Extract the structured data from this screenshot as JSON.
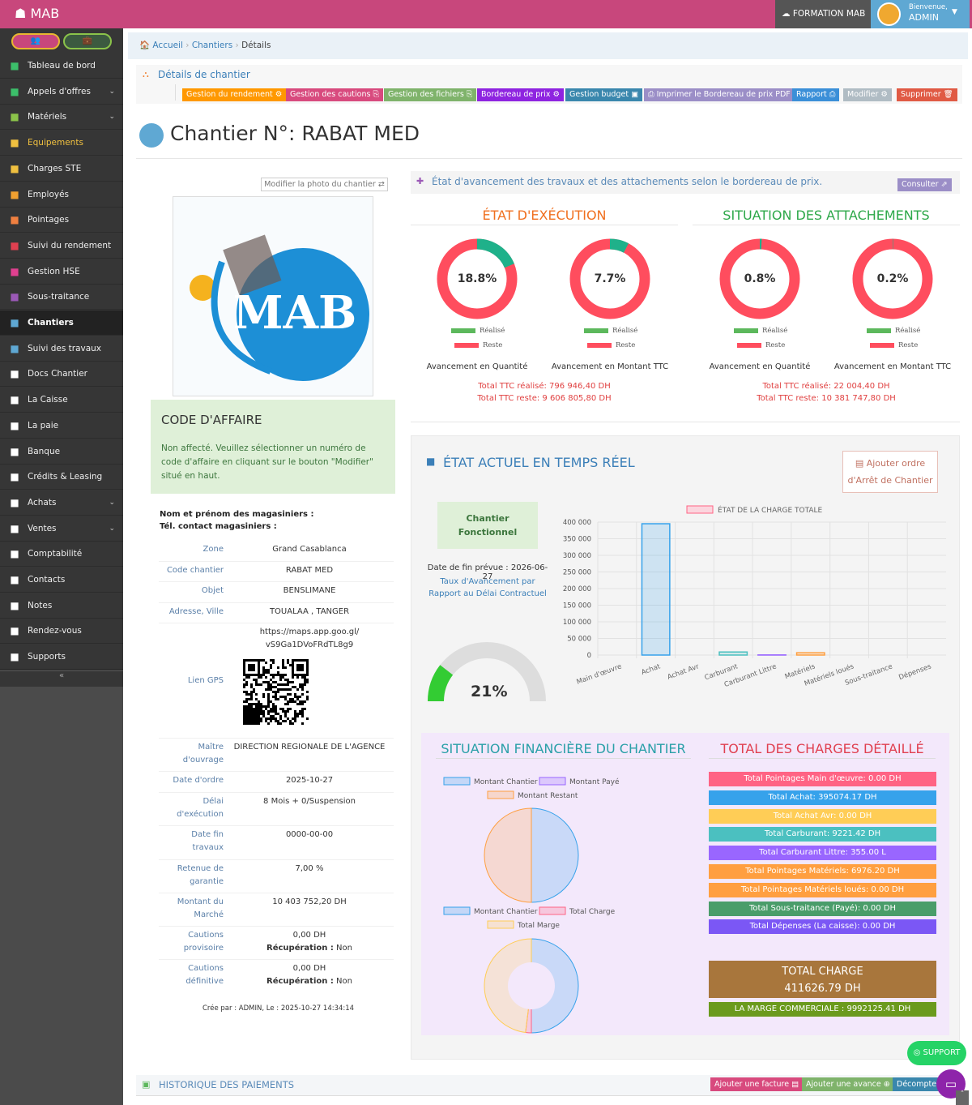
{
  "header": {
    "app": "MAB",
    "formation": "FORMATION MAB",
    "welcome": "Bienvenue,",
    "user": "ADMIN"
  },
  "sidebar": {
    "items": [
      {
        "label": "Tableau de bord",
        "icon": "dashboard-icon",
        "color": "#3cbf6a"
      },
      {
        "label": "Appels d'offres",
        "icon": "globe-icon",
        "color": "#3cbf6a",
        "chevron": true
      },
      {
        "label": "Matériels",
        "icon": "truck-icon",
        "color": "#8bc34a",
        "chevron": true
      },
      {
        "label": "Equipements",
        "icon": "list-icon",
        "color": "#f0c040",
        "yellow": true
      },
      {
        "label": "Charges STE",
        "icon": "file-icon",
        "color": "#f0c040"
      },
      {
        "label": "Employés",
        "icon": "users-icon",
        "color": "#f0a030"
      },
      {
        "label": "Pointages",
        "icon": "calendar-icon",
        "color": "#f08040"
      },
      {
        "label": "Suivi du rendement",
        "icon": "calendar-check-icon",
        "color": "#e04050"
      },
      {
        "label": "Gestion HSE",
        "icon": "warning-icon",
        "color": "#e04090"
      },
      {
        "label": "Sous-traitance",
        "icon": "handshake-icon",
        "color": "#9b59b6"
      },
      {
        "label": "Chantiers",
        "icon": "building-icon",
        "color": "#5fa8d3",
        "active": true
      },
      {
        "label": "Suivi des travaux",
        "icon": "puzzle-icon",
        "color": "#5fa8d3"
      },
      {
        "label": "Docs Chantier",
        "icon": "folder-icon",
        "color": "#fff"
      },
      {
        "label": "La Caisse",
        "icon": "briefcase-icon",
        "color": "#fff"
      },
      {
        "label": "La paie",
        "icon": "money-icon",
        "color": "#fff"
      },
      {
        "label": "Banque",
        "icon": "book-icon",
        "color": "#fff"
      },
      {
        "label": "Crédits & Leasing",
        "icon": "bank-icon",
        "color": "#fff"
      },
      {
        "label": "Achats",
        "icon": "cart-icon",
        "color": "#fff",
        "chevron": true
      },
      {
        "label": "Ventes",
        "icon": "cubes-icon",
        "color": "#fff",
        "chevron": true
      },
      {
        "label": "Comptabilité",
        "icon": "calculator-icon",
        "color": "#fff"
      },
      {
        "label": "Contacts",
        "icon": "phone-icon",
        "color": "#fff"
      },
      {
        "label": "Notes",
        "icon": "lightbulb-icon",
        "color": "#fff"
      },
      {
        "label": "Rendez-vous",
        "icon": "chat-icon",
        "color": "#fff"
      },
      {
        "label": "Supports",
        "icon": "lifebuoy-icon",
        "color": "#fff"
      }
    ]
  },
  "breadcrumb": [
    "Accueil",
    "Chantiers",
    "Détails"
  ],
  "details_heading": "Détails de chantier",
  "toolbar": [
    {
      "label": "Gestion du rendement ⚙",
      "color": "#ff9800"
    },
    {
      "label": "Gestion des cautions ⎘",
      "color": "#d84a7e"
    },
    {
      "label": "Gestion des fichiers ⎘",
      "color": "#7fb36b"
    },
    {
      "label": "Bordereau de prix ⚙",
      "color": "#8e24e0"
    },
    {
      "label": "Gestion budget ▣",
      "color": "#3a87ad"
    },
    {
      "label": "⎙ Imprimer le Bordereau de prix PDF",
      "color": "#9b8ec7"
    },
    {
      "label": "Rapport ⎙",
      "color": "#3b8fd8"
    },
    {
      "label": "Modifier ⚙",
      "color": "#b0bcc4"
    },
    {
      "label": "Supprimer 🗑",
      "color": "#e05a44"
    }
  ],
  "title": "Chantier N°: RABAT MED",
  "photo_button": "Modifier la photo du chantier ⇄",
  "photo_logo": "MAB",
  "code_affaire": {
    "title": "CODE D'AFFAIRE",
    "text": "Non affecté. Veuillez sélectionner un numéro de code d'affaire en cliquant sur le bouton \"Modifier\" situé en haut."
  },
  "magasiniers": [
    "Nom et prénom des magasiniers :",
    "Tél. contact magasiniers :"
  ],
  "info": [
    {
      "label": "Zone",
      "value": "Grand Casablanca"
    },
    {
      "label": "Code chantier",
      "value": "RABAT MED"
    },
    {
      "label": "Objet",
      "value": "BENSLIMANE"
    },
    {
      "label": "Adresse, Ville",
      "value": "TOUALAA , TANGER"
    },
    {
      "label": "",
      "value": "https://maps.app.goo.gl/ vS9Ga1DVoFRdTL8g9"
    },
    {
      "label": "Lien GPS",
      "value": ""
    },
    {
      "label": "Maître d'ouvrage",
      "value": "DIRECTION REGIONALE DE L'AGENCE"
    },
    {
      "label": "Date d'ordre",
      "value": "2025-10-27"
    },
    {
      "label": "Délai d'exécution",
      "value": "8 Mois + 0/Suspension"
    },
    {
      "label": "Date fin travaux",
      "value": "0000-00-00"
    },
    {
      "label": "Retenue de garantie",
      "value": "7,00 %"
    },
    {
      "label": "Montant du Marché",
      "value": "10 403 752,20 DH"
    },
    {
      "label": "Cautions provisoire",
      "value": "0,00 DH",
      "extra_label": "Récupération :",
      "extra": "Non"
    },
    {
      "label": "Cautions définitive",
      "value": "0,00 DH",
      "extra_label": "Récupération :",
      "extra": "Non"
    }
  ],
  "created": "Crée par : ADMIN, Le : 2025-10-27 14:34:14",
  "avancement": {
    "heading": "État d'avancement des travaux et des attachements selon le bordereau de prix.",
    "consult": "Consulter ⇗",
    "execution_title": "ÉTAT D'EXÉCUTION",
    "attach_title": "SITUATION DES ATTACHEMENTS",
    "legend_done": "Réalisé",
    "legend_rest": "Reste",
    "donuts": [
      {
        "pct": 18.8,
        "label": "18.8%",
        "caption": "Avancement en Quantité"
      },
      {
        "pct": 7.7,
        "label": "7.7%",
        "caption": "Avancement en Montant TTC"
      },
      {
        "pct": 0.8,
        "label": "0.8%",
        "caption": "Avancement en Quantité"
      },
      {
        "pct": 0.2,
        "label": "0.2%",
        "caption": "Avancement en Montant TTC"
      }
    ],
    "exec_totals": [
      "Total TTC réalisé: 796 946,40 DH",
      "Total TTC reste: 9 606 805,80 DH"
    ],
    "attach_totals": [
      "Total TTC réalisé: 22 004,40 DH",
      "Total TTC reste: 10 381 747,80 DH"
    ],
    "colors": {
      "done": "#1fb18a",
      "rest": "#ff4d5e",
      "legend_done": "#5cb85c"
    }
  },
  "realtime": {
    "title": "ÉTAT ACTUEL EN TEMPS RÉEL",
    "add_order": "Ajouter ordre",
    "add_order2": "d'Arrêt de Chantier",
    "status": "Chantier Fonctionnel",
    "end_date": "Date de fin prévue : 2026-06-27",
    "rate_label": "Taux d'Avancement par Rapport au Délai Contractuel",
    "gauge_pct": 21,
    "gauge_label": "21%"
  },
  "chart_data": [
    {
      "type": "bar",
      "title": "ÉTAT DE LA CHARGE TOTALE",
      "categories": [
        "Main d'œuvre",
        "Achat",
        "Achat Avr",
        "Carburant",
        "Carburant Littre",
        "Matériels",
        "Matériels loués",
        "Sous-traitance",
        "Dépenses"
      ],
      "values": [
        0,
        395074.17,
        0,
        9221.42,
        355,
        6976.2,
        0,
        0,
        0
      ],
      "colors": [
        "#ff6384",
        "#36a2eb",
        "#ffcd56",
        "#4bc0c0",
        "#9966ff",
        "#ff9f40",
        "#ff6384",
        "#36a2eb",
        "#ffcd56"
      ],
      "yticks": [
        "0",
        "50 000",
        "100 000",
        "150 000",
        "200 000",
        "250 000",
        "300 000",
        "350 000",
        "400 000"
      ],
      "ylim": [
        0,
        400000
      ],
      "grid": true,
      "legend": "top"
    },
    {
      "type": "pie",
      "legend": [
        "Montant Chantier",
        "Montant Payé",
        "Montant Restant"
      ],
      "values": [
        10403752.2,
        0,
        10403752.2
      ],
      "colors": [
        "#36a2eb",
        "#9966ff",
        "#ff9f40"
      ]
    },
    {
      "type": "pie",
      "legend": [
        "Montant Chantier",
        "Total Charge",
        "Total Marge"
      ],
      "values": [
        10403752.2,
        411626.79,
        9992125.41
      ],
      "colors": [
        "#36a2eb",
        "#ff6384",
        "#ffcd56"
      ]
    }
  ],
  "finance": {
    "title": "SITUATION FINANCIÈRE DU CHANTIER",
    "charges_title": "TOTAL DES CHARGES DÉTAILLÉ",
    "charges": [
      {
        "label": "Total Pointages Main d'œuvre: 0.00 DH",
        "color": "#ff6384"
      },
      {
        "label": "Total Achat: 395074.17 DH",
        "color": "#36a2eb"
      },
      {
        "label": "Total Achat Avr: 0.00 DH",
        "color": "#ffcd56"
      },
      {
        "label": "Total Carburant: 9221.42 DH",
        "color": "#4bc0c0"
      },
      {
        "label": "Total Carburant Littre: 355.00 L",
        "color": "#9966ff"
      },
      {
        "label": "Total Pointages Matériels: 6976.20 DH",
        "color": "#ff9f40"
      },
      {
        "label": "Total Pointages Matériels loués: 0.00 DH",
        "color": "#ff9f40"
      },
      {
        "label": "Total Sous-traitance (Payé): 0.00 DH",
        "color": "#4a9d6a"
      },
      {
        "label": "Total Dépenses (La caisse): 0.00 DH",
        "color": "#7b57f5"
      }
    ],
    "total_label": "TOTAL CHARGE",
    "total_value": "411626.79 DH",
    "marge": "LA MARGE COMMERCIALE : 9992125.41 DH"
  },
  "payments": {
    "title": "HISTORIQUE DES PAIEMENTS",
    "buttons": [
      {
        "label": "Ajouter une facture ▤",
        "color": "#d84a7e"
      },
      {
        "label": "Ajouter une avance ⊕",
        "color": "#7fb36b"
      },
      {
        "label": "Décomptes",
        "color": "#3a87ad"
      }
    ]
  },
  "support": "SUPPORT"
}
